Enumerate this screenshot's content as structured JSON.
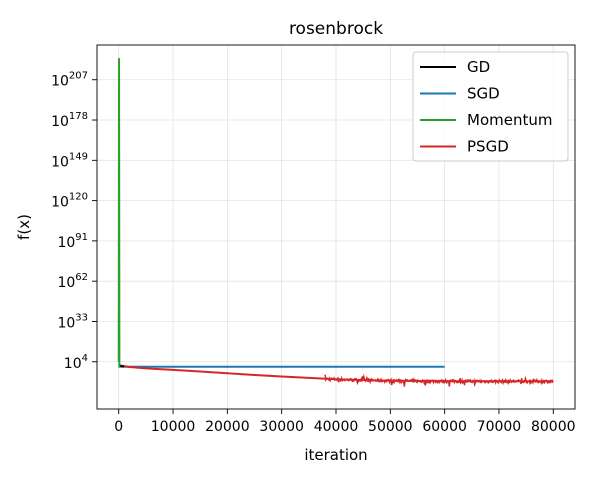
{
  "chart_data": {
    "type": "line",
    "title": "rosenbrock",
    "xlabel": "iteration",
    "ylabel": "f(x)",
    "xlim": [
      -4000,
      84000
    ],
    "xticks": [
      {
        "value": 0,
        "label": "0"
      },
      {
        "value": 10000,
        "label": "10000"
      },
      {
        "value": 20000,
        "label": "20000"
      },
      {
        "value": 30000,
        "label": "30000"
      },
      {
        "value": 40000,
        "label": "40000"
      },
      {
        "value": 50000,
        "label": "50000"
      },
      {
        "value": 60000,
        "label": "60000"
      },
      {
        "value": 70000,
        "label": "70000"
      },
      {
        "value": 80000,
        "label": "80000"
      }
    ],
    "yscale": "log",
    "ylim_log10": [
      -30,
      232
    ],
    "yticks": [
      {
        "exp": 4,
        "base": "10",
        "sup": "4"
      },
      {
        "exp": 33,
        "base": "10",
        "sup": "33"
      },
      {
        "exp": 62,
        "base": "10",
        "sup": "62"
      },
      {
        "exp": 91,
        "base": "10",
        "sup": "91"
      },
      {
        "exp": 120,
        "base": "10",
        "sup": "120"
      },
      {
        "exp": 149,
        "base": "10",
        "sup": "149"
      },
      {
        "exp": 178,
        "base": "10",
        "sup": "178"
      },
      {
        "exp": 207,
        "base": "10",
        "sup": "207"
      }
    ],
    "grid": true,
    "legend_position": "top-right",
    "series": [
      {
        "name": "GD",
        "color": "#000000",
        "points": [
          [
            0,
            1
          ],
          [
            1000,
            0.6
          ]
        ]
      },
      {
        "name": "SGD",
        "color": "#1f77b4",
        "points": [
          [
            0,
            0.5
          ],
          [
            2000,
            0.4
          ],
          [
            10000,
            0.4
          ],
          [
            20000,
            0.4
          ],
          [
            30000,
            0.4
          ],
          [
            40000,
            0.4
          ],
          [
            50000,
            0.4
          ],
          [
            60000,
            0.4
          ]
        ]
      },
      {
        "name": "Momentum",
        "color": "#2ca02c",
        "points": [
          [
            0,
            4
          ],
          [
            60,
            222
          ],
          [
            120,
            0.3
          ],
          [
            150,
            0.3
          ]
        ]
      },
      {
        "name": "PSGD",
        "color": "#d62728",
        "points": [
          [
            0,
            1.5
          ],
          [
            2000,
            0.2
          ],
          [
            5000,
            -0.8
          ],
          [
            10000,
            -1.8
          ],
          [
            15000,
            -3
          ],
          [
            20000,
            -4.3
          ],
          [
            25000,
            -5.5
          ],
          [
            30000,
            -6.6
          ],
          [
            35000,
            -7.6
          ],
          [
            40000,
            -8.6
          ],
          [
            45000,
            -9.2
          ],
          [
            50000,
            -9.6
          ],
          [
            55000,
            -9.8
          ],
          [
            60000,
            -9.9
          ],
          [
            65000,
            -10
          ],
          [
            70000,
            -10
          ],
          [
            75000,
            -10
          ],
          [
            80000,
            -10
          ]
        ],
        "noise_band_from_x": 38000,
        "noise_amplitude": 1.2
      }
    ]
  }
}
